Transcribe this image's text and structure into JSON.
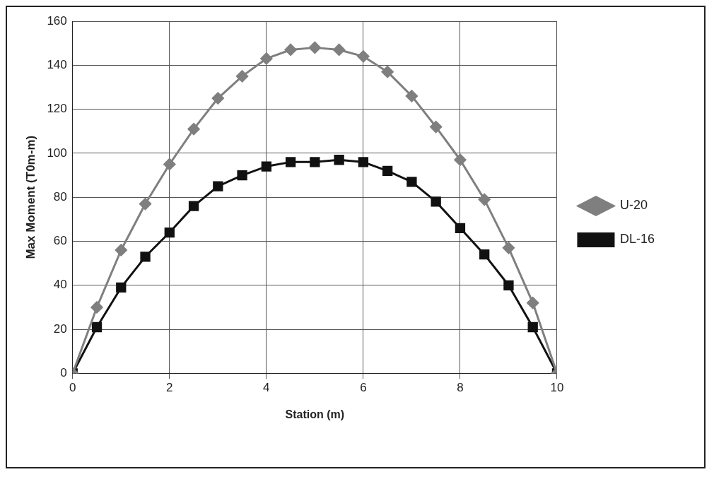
{
  "chart_data": {
    "type": "line",
    "xlabel": "Station (m)",
    "ylabel": "Max Moment (T0m-m)",
    "x": [
      0,
      0.5,
      1,
      1.5,
      2,
      2.5,
      3,
      3.5,
      4,
      4.5,
      5,
      5.5,
      6,
      6.5,
      7,
      7.5,
      8,
      8.5,
      9,
      9.5,
      10
    ],
    "series": [
      {
        "name": "U-20",
        "color": "#7f7f7f",
        "marker": "diamond",
        "values": [
          0,
          30,
          56,
          77,
          95,
          111,
          125,
          135,
          143,
          147,
          148,
          147,
          144,
          137,
          126,
          112,
          97,
          79,
          57,
          32,
          0
        ]
      },
      {
        "name": "DL-16",
        "color": "#111111",
        "marker": "square",
        "values": [
          0,
          21,
          39,
          53,
          64,
          76,
          85,
          90,
          94,
          96,
          96,
          97,
          96,
          92,
          87,
          78,
          66,
          54,
          40,
          21,
          0
        ]
      }
    ],
    "xlim": [
      0,
      10
    ],
    "xticks": [
      0,
      2,
      4,
      6,
      8,
      10
    ],
    "ylim": [
      0,
      160
    ],
    "yticks": [
      0,
      20,
      40,
      60,
      80,
      100,
      120,
      140,
      160
    ],
    "grid": true,
    "legend": "right",
    "line_style": "solid"
  }
}
